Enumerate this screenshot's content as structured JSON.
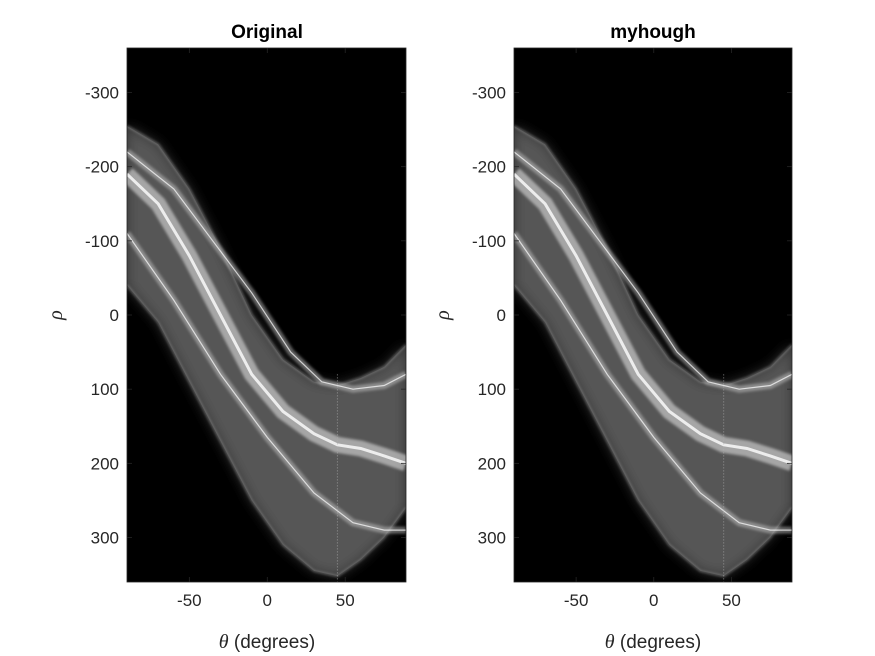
{
  "chart_data": [
    {
      "type": "heatmap",
      "title": "Original",
      "xlabel": {
        "symbol": "θ",
        "text": " (degrees)"
      },
      "ylabel": "ρ",
      "xlim": [
        -90,
        89
      ],
      "ylim": [
        -360,
        360
      ],
      "y_reversed": true,
      "xticks": [
        -50,
        0,
        50
      ],
      "yticks": [
        -300,
        -200,
        -100,
        0,
        100,
        200,
        300
      ],
      "colormap": "gray",
      "background_color": "#000000",
      "content": "Hough transform accumulator: bright sinusoidal band of votes",
      "band": {
        "upper_edge": [
          [
            -90,
            -255
          ],
          [
            -70,
            -230
          ],
          [
            -50,
            -170
          ],
          [
            -30,
            -90
          ],
          [
            -10,
            0
          ],
          [
            10,
            60
          ],
          [
            30,
            90
          ],
          [
            45,
            95
          ],
          [
            60,
            85
          ],
          [
            75,
            70
          ],
          [
            89,
            40
          ]
        ],
        "lower_edge": [
          [
            -90,
            -40
          ],
          [
            -70,
            10
          ],
          [
            -50,
            90
          ],
          [
            -30,
            170
          ],
          [
            -10,
            250
          ],
          [
            10,
            310
          ],
          [
            30,
            345
          ],
          [
            45,
            352
          ],
          [
            60,
            330
          ],
          [
            75,
            300
          ],
          [
            89,
            260
          ]
        ],
        "bright_ridge": [
          [
            -90,
            -190
          ],
          [
            -70,
            -150
          ],
          [
            -50,
            -80
          ],
          [
            -30,
            0
          ],
          [
            -10,
            80
          ],
          [
            10,
            130
          ],
          [
            30,
            160
          ],
          [
            45,
            175
          ],
          [
            60,
            180
          ],
          [
            75,
            190
          ],
          [
            89,
            200
          ]
        ],
        "secondary_ridges": [
          [
            [
              -90,
              -220
            ],
            [
              -60,
              -170
            ],
            [
              -35,
              -100
            ],
            [
              -10,
              -30
            ],
            [
              15,
              50
            ],
            [
              35,
              90
            ],
            [
              55,
              100
            ],
            [
              75,
              95
            ],
            [
              89,
              80
            ]
          ],
          [
            [
              -90,
              -110
            ],
            [
              -60,
              -20
            ],
            [
              -30,
              80
            ],
            [
              0,
              165
            ],
            [
              30,
              240
            ],
            [
              55,
              280
            ],
            [
              75,
              290
            ],
            [
              89,
              290
            ]
          ]
        ],
        "vertical_artifact_theta": 45
      }
    },
    {
      "type": "heatmap",
      "title": "myhough",
      "xlabel": {
        "symbol": "θ",
        "text": " (degrees)"
      },
      "ylabel": "ρ",
      "xlim": [
        -90,
        89
      ],
      "ylim": [
        -360,
        360
      ],
      "y_reversed": true,
      "xticks": [
        -50,
        0,
        50
      ],
      "yticks": [
        -300,
        -200,
        -100,
        0,
        100,
        200,
        300
      ],
      "colormap": "gray",
      "background_color": "#000000",
      "content": "Hough transform accumulator: bright sinusoidal band of votes",
      "band": {
        "upper_edge": [
          [
            -90,
            -255
          ],
          [
            -70,
            -230
          ],
          [
            -50,
            -170
          ],
          [
            -30,
            -90
          ],
          [
            -10,
            0
          ],
          [
            10,
            60
          ],
          [
            30,
            90
          ],
          [
            45,
            95
          ],
          [
            60,
            85
          ],
          [
            75,
            70
          ],
          [
            89,
            40
          ]
        ],
        "lower_edge": [
          [
            -90,
            -40
          ],
          [
            -70,
            10
          ],
          [
            -50,
            90
          ],
          [
            -30,
            170
          ],
          [
            -10,
            250
          ],
          [
            10,
            310
          ],
          [
            30,
            345
          ],
          [
            45,
            352
          ],
          [
            60,
            330
          ],
          [
            75,
            300
          ],
          [
            89,
            260
          ]
        ],
        "bright_ridge": [
          [
            -90,
            -190
          ],
          [
            -70,
            -150
          ],
          [
            -50,
            -80
          ],
          [
            -30,
            0
          ],
          [
            -10,
            80
          ],
          [
            10,
            130
          ],
          [
            30,
            160
          ],
          [
            45,
            175
          ],
          [
            60,
            180
          ],
          [
            75,
            190
          ],
          [
            89,
            200
          ]
        ],
        "secondary_ridges": [
          [
            [
              -90,
              -220
            ],
            [
              -60,
              -170
            ],
            [
              -35,
              -100
            ],
            [
              -10,
              -30
            ],
            [
              15,
              50
            ],
            [
              35,
              90
            ],
            [
              55,
              100
            ],
            [
              75,
              95
            ],
            [
              89,
              80
            ]
          ],
          [
            [
              -90,
              -110
            ],
            [
              -60,
              -20
            ],
            [
              -30,
              80
            ],
            [
              0,
              165
            ],
            [
              30,
              240
            ],
            [
              55,
              280
            ],
            [
              75,
              290
            ],
            [
              89,
              290
            ]
          ]
        ],
        "vertical_artifact_theta": 45
      }
    }
  ]
}
